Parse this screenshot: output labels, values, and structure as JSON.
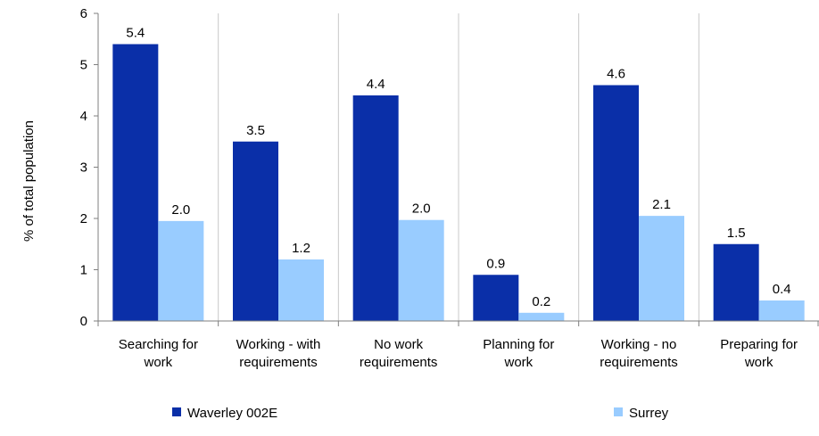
{
  "chart_data": {
    "type": "bar",
    "title": "",
    "xlabel": "",
    "ylabel": "% of total population",
    "ylim": [
      0,
      6
    ],
    "yticks": [
      "0",
      "1",
      "2",
      "3",
      "4",
      "5",
      "6"
    ],
    "grid": "vertical separators only",
    "legend_position": "bottom",
    "categories": [
      [
        "Searching for",
        "work"
      ],
      [
        "Working - with",
        "requirements"
      ],
      [
        "No work",
        "requirements"
      ],
      [
        "Planning for",
        "work"
      ],
      [
        "Working - no",
        "requirements"
      ],
      [
        "Preparing for",
        "work"
      ]
    ],
    "series": [
      {
        "name": "Waverley 002E",
        "color": "#0a2fa8",
        "values": [
          5.4,
          3.5,
          4.4,
          0.9,
          4.6,
          1.5
        ],
        "labels": [
          "5.4",
          "3.5",
          "4.4",
          "0.9",
          "4.6",
          "1.5"
        ]
      },
      {
        "name": "Surrey",
        "color": "#99ccff",
        "values": [
          1.95,
          1.2,
          1.97,
          0.16,
          2.05,
          0.4
        ],
        "labels": [
          "2.0",
          "1.2",
          "2.0",
          "0.2",
          "2.1",
          "0.4"
        ]
      }
    ]
  }
}
